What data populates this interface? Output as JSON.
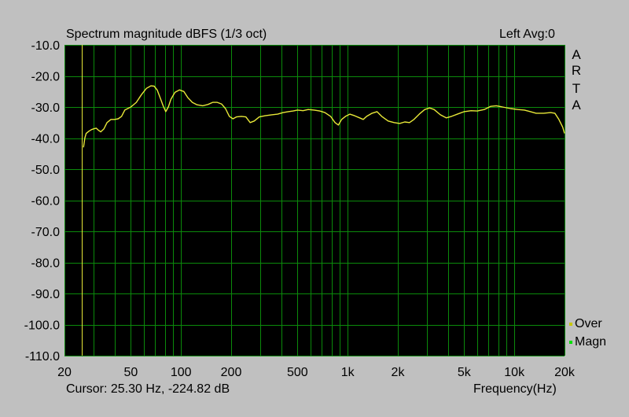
{
  "chart_data": {
    "type": "line",
    "title": "Spectrum magnitude dBFS (1/3 oct)",
    "top_right": "Left  Avg:0",
    "brand": [
      "A",
      "R",
      "T",
      "A"
    ],
    "xlabel": "Frequency(Hz)",
    "x_scale": "log",
    "xlim": [
      20,
      20000
    ],
    "ylim": [
      -110,
      -10
    ],
    "x_ticks": [
      {
        "v": 20,
        "label": "20"
      },
      {
        "v": 50,
        "label": "50"
      },
      {
        "v": 100,
        "label": "100"
      },
      {
        "v": 200,
        "label": "200"
      },
      {
        "v": 500,
        "label": "500"
      },
      {
        "v": 1000,
        "label": "1k"
      },
      {
        "v": 2000,
        "label": "2k"
      },
      {
        "v": 5000,
        "label": "5k"
      },
      {
        "v": 10000,
        "label": "10k"
      },
      {
        "v": 20000,
        "label": "20k"
      }
    ],
    "y_ticks": [
      {
        "v": -10,
        "label": "-10.0"
      },
      {
        "v": -20,
        "label": "-20.0"
      },
      {
        "v": -30,
        "label": "-30.0"
      },
      {
        "v": -40,
        "label": "-40.0"
      },
      {
        "v": -50,
        "label": "-50.0"
      },
      {
        "v": -60,
        "label": "-60.0"
      },
      {
        "v": -70,
        "label": "-70.0"
      },
      {
        "v": -80,
        "label": "-80.0"
      },
      {
        "v": -90,
        "label": "-90.0"
      },
      {
        "v": -100,
        "label": "-100.0"
      },
      {
        "v": -110,
        "label": "-110.0"
      }
    ],
    "grid": true,
    "legend": [
      {
        "name": "Over",
        "color": "#c8c800"
      },
      {
        "name": "Magn",
        "color": "#00e000"
      }
    ],
    "cursor_x": 25.3,
    "cursor_text": "Cursor:     25.30 Hz, -224.82 dB",
    "series": [
      {
        "color": "#e8e838",
        "points": [
          [
            26,
            -43
          ],
          [
            26.5,
            -40
          ],
          [
            27,
            -38.5
          ],
          [
            28,
            -37.8
          ],
          [
            29,
            -37.3
          ],
          [
            30,
            -37
          ],
          [
            31,
            -36.8
          ],
          [
            32,
            -37.5
          ],
          [
            33,
            -38
          ],
          [
            34.5,
            -37
          ],
          [
            36,
            -35
          ],
          [
            38,
            -34
          ],
          [
            40,
            -34
          ],
          [
            42,
            -33.8
          ],
          [
            44,
            -33
          ],
          [
            46,
            -31
          ],
          [
            50,
            -30
          ],
          [
            54,
            -28.5
          ],
          [
            58,
            -26
          ],
          [
            62,
            -24
          ],
          [
            66,
            -23.2
          ],
          [
            69,
            -23.3
          ],
          [
            72,
            -24.5
          ],
          [
            75,
            -27
          ],
          [
            78,
            -29.5
          ],
          [
            81,
            -31.5
          ],
          [
            84,
            -30
          ],
          [
            87,
            -27.5
          ],
          [
            92,
            -25.3
          ],
          [
            98,
            -24.5
          ],
          [
            104,
            -25
          ],
          [
            110,
            -27
          ],
          [
            117,
            -28.5
          ],
          [
            125,
            -29.3
          ],
          [
            135,
            -29.6
          ],
          [
            145,
            -29.2
          ],
          [
            155,
            -28.5
          ],
          [
            165,
            -28.5
          ],
          [
            175,
            -29
          ],
          [
            185,
            -30.5
          ],
          [
            195,
            -33
          ],
          [
            205,
            -33.8
          ],
          [
            215,
            -33.2
          ],
          [
            230,
            -33
          ],
          [
            245,
            -33.2
          ],
          [
            260,
            -35
          ],
          [
            275,
            -34.5
          ],
          [
            295,
            -33.2
          ],
          [
            320,
            -32.8
          ],
          [
            350,
            -32.5
          ],
          [
            380,
            -32.3
          ],
          [
            410,
            -31.8
          ],
          [
            440,
            -31.5
          ],
          [
            470,
            -31.3
          ],
          [
            500,
            -31
          ],
          [
            540,
            -31.2
          ],
          [
            580,
            -30.8
          ],
          [
            630,
            -31
          ],
          [
            680,
            -31.3
          ],
          [
            730,
            -31.8
          ],
          [
            790,
            -33
          ],
          [
            840,
            -35
          ],
          [
            880,
            -35.8
          ],
          [
            920,
            -34
          ],
          [
            970,
            -33
          ],
          [
            1030,
            -32.3
          ],
          [
            1100,
            -32.8
          ],
          [
            1180,
            -33.5
          ],
          [
            1240,
            -34
          ],
          [
            1300,
            -33
          ],
          [
            1400,
            -32
          ],
          [
            1500,
            -31.5
          ],
          [
            1600,
            -33
          ],
          [
            1750,
            -34.5
          ],
          [
            1900,
            -35
          ],
          [
            2050,
            -35.3
          ],
          [
            2200,
            -34.8
          ],
          [
            2350,
            -35
          ],
          [
            2500,
            -34
          ],
          [
            2700,
            -32.2
          ],
          [
            2900,
            -30.8
          ],
          [
            3100,
            -30.3
          ],
          [
            3300,
            -30.8
          ],
          [
            3600,
            -32.5
          ],
          [
            3900,
            -33.5
          ],
          [
            4200,
            -33
          ],
          [
            4600,
            -32.2
          ],
          [
            5000,
            -31.5
          ],
          [
            5500,
            -31.2
          ],
          [
            6000,
            -31.3
          ],
          [
            6600,
            -30.8
          ],
          [
            7200,
            -29.8
          ],
          [
            7800,
            -29.6
          ],
          [
            8500,
            -30
          ],
          [
            9500,
            -30.5
          ],
          [
            10500,
            -30.8
          ],
          [
            11500,
            -31
          ],
          [
            12500,
            -31.5
          ],
          [
            13500,
            -32
          ],
          [
            15000,
            -32
          ],
          [
            16500,
            -31.8
          ],
          [
            17500,
            -32
          ],
          [
            18500,
            -34
          ],
          [
            19500,
            -36.5
          ],
          [
            20000,
            -38.5
          ]
        ]
      }
    ]
  }
}
